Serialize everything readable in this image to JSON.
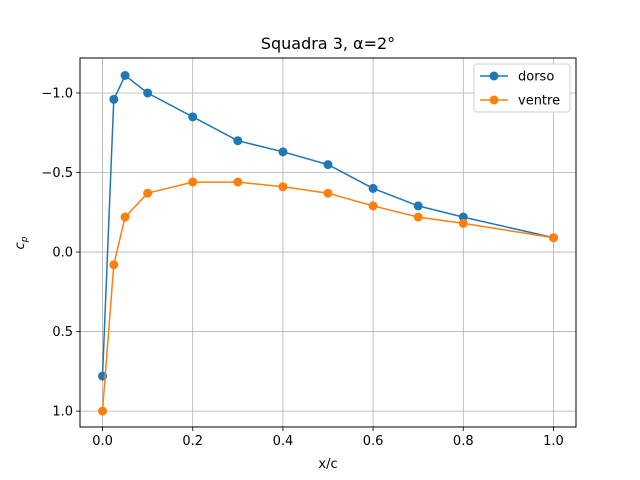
{
  "chart_data": {
    "type": "line",
    "title": "Squadra 3, α=2°",
    "xlabel": "x/c",
    "ylabel": "c",
    "ylabel_sub": "p",
    "xlim": [
      -0.05,
      1.05
    ],
    "ylim": [
      1.1,
      -1.22
    ],
    "y_inverted": true,
    "x_ticks": [
      0.0,
      0.2,
      0.4,
      0.6,
      0.8,
      1.0
    ],
    "x_tick_labels": [
      "0.0",
      "0.2",
      "0.4",
      "0.6",
      "0.8",
      "1.0"
    ],
    "y_ticks": [
      -1.0,
      -0.5,
      0.0,
      0.5,
      1.0
    ],
    "y_tick_labels": [
      "−1.0",
      "−0.5",
      "0.0",
      "0.5",
      "1.0"
    ],
    "grid": true,
    "legend_position": "top-right",
    "series": [
      {
        "name": "dorso",
        "color": "#1f77b4",
        "x": [
          0.0,
          0.025,
          0.05,
          0.1,
          0.2,
          0.3,
          0.4,
          0.5,
          0.6,
          0.7,
          0.8,
          1.0
        ],
        "y": [
          0.78,
          -0.96,
          -1.11,
          -1.0,
          -0.85,
          -0.7,
          -0.63,
          -0.55,
          -0.4,
          -0.29,
          -0.22,
          -0.09
        ]
      },
      {
        "name": "ventre",
        "color": "#ff7f0e",
        "x": [
          0.0,
          0.025,
          0.05,
          0.1,
          0.2,
          0.3,
          0.4,
          0.5,
          0.6,
          0.7,
          0.8,
          1.0
        ],
        "y": [
          1.0,
          0.08,
          -0.22,
          -0.37,
          -0.44,
          -0.44,
          -0.41,
          -0.37,
          -0.29,
          -0.22,
          -0.18,
          -0.09
        ]
      }
    ]
  }
}
